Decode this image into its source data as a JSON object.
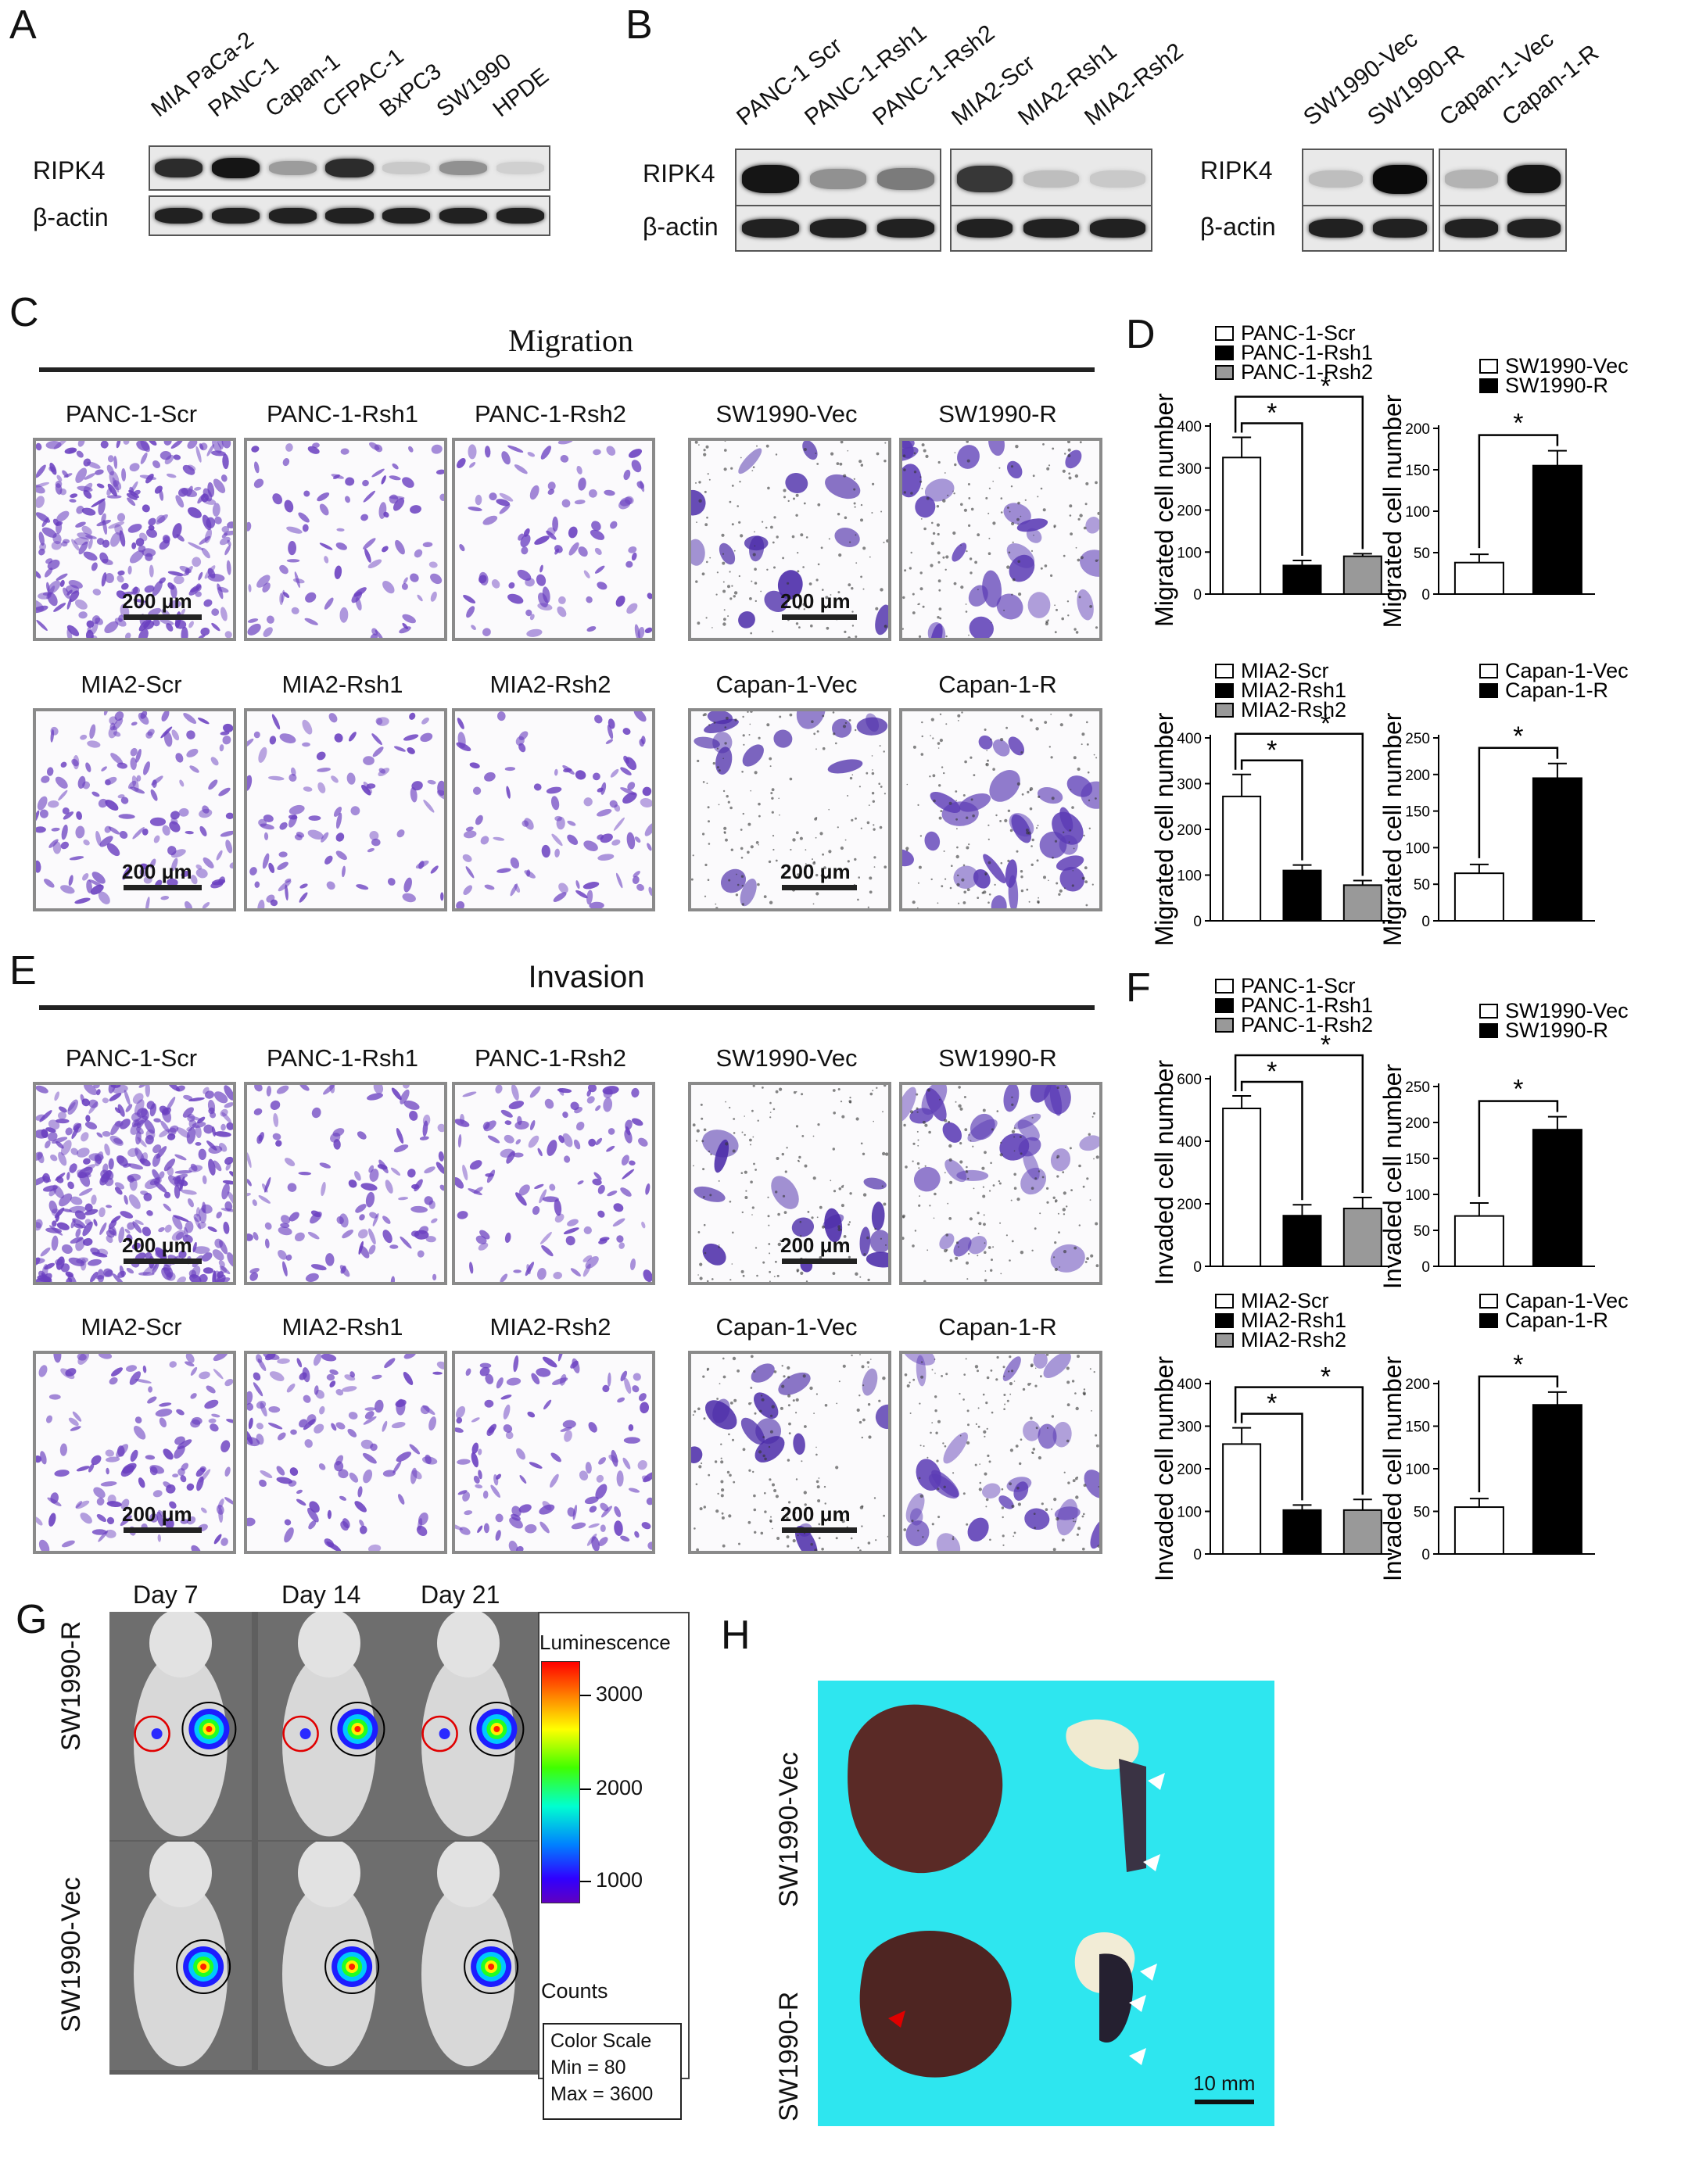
{
  "panels": {
    "A": "A",
    "B": "B",
    "C": "C",
    "D": "D",
    "E": "E",
    "F": "F",
    "G": "G",
    "H": "H"
  },
  "panelA": {
    "lanes": [
      "MIA PaCa-2",
      "PANC-1",
      "Capan-1",
      "CFPAC-1",
      "BxPC3",
      "SW1990",
      "HPDE"
    ],
    "rows": [
      "RIPK4",
      "β-actin"
    ],
    "ripk4_intensity": [
      0.85,
      0.95,
      0.35,
      0.85,
      0.15,
      0.4,
      0.12
    ]
  },
  "panelB": {
    "group1_lanes": [
      "PANC-1 Scr",
      "PANC-1-Rsh1",
      "PANC-1-Rsh2"
    ],
    "group2_lanes": [
      "MIA2-Scr",
      "MIA2-Rsh1",
      "MIA2-Rsh2"
    ],
    "group3_lanes": [
      "SW1990-Vec",
      "SW1990-R"
    ],
    "group4_lanes": [
      "Capan-1-Vec",
      "Capan-1-R"
    ],
    "rows": [
      "RIPK4",
      "β-actin"
    ],
    "ripk4_intensity_g1": [
      0.95,
      0.4,
      0.5
    ],
    "ripk4_intensity_g2": [
      0.8,
      0.2,
      0.15
    ],
    "ripk4_intensity_g3": [
      0.2,
      1.0
    ],
    "ripk4_intensity_g4": [
      0.25,
      0.95
    ]
  },
  "panelC": {
    "title": "Migration",
    "row1": [
      "PANC-1-Scr",
      "PANC-1-Rsh1",
      "PANC-1-Rsh2",
      "SW1990-Vec",
      "SW1990-R"
    ],
    "row2": [
      "MIA2-Scr",
      "MIA2-Rsh1",
      "MIA2-Rsh2",
      "Capan-1-Vec",
      "Capan-1-R"
    ],
    "scale": "200 μm"
  },
  "panelE": {
    "title": "Invasion",
    "row1": [
      "PANC-1-Scr",
      "PANC-1-Rsh1",
      "PANC-1-Rsh2",
      "SW1990-Vec",
      "SW1990-R"
    ],
    "row2": [
      "MIA2-Scr",
      "MIA2-Rsh1",
      "MIA2-Rsh2",
      "Capan-1-Vec",
      "Capan-1-R"
    ],
    "scale": "200 μm"
  },
  "chart_data": [
    {
      "id": "D1",
      "type": "bar",
      "ylabel": "Migrated cell number",
      "ylim": [
        0,
        400
      ],
      "yticks": [
        0,
        100,
        200,
        300,
        400
      ],
      "categories": [
        "PANC-1-Scr",
        "PANC-1-Rsh1",
        "PANC-1-Rsh2"
      ],
      "values": [
        325,
        68,
        90
      ],
      "errors": [
        48,
        12,
        6
      ],
      "legend": [
        "PANC-1-Scr",
        "PANC-1-Rsh1",
        "PANC-1-Rsh2"
      ],
      "fills": [
        "#ffffff",
        "#000000",
        "#999999"
      ],
      "sig": "*"
    },
    {
      "id": "D2",
      "type": "bar",
      "ylabel": "Migrated cell number",
      "ylim": [
        0,
        200
      ],
      "yticks": [
        0,
        50,
        100,
        150,
        200
      ],
      "categories": [
        "SW1990-Vec",
        "SW1990-R"
      ],
      "values": [
        38,
        155
      ],
      "errors": [
        10,
        18
      ],
      "legend": [
        "SW1990-Vec",
        "SW1990-R"
      ],
      "fills": [
        "#ffffff",
        "#000000"
      ],
      "sig": "*"
    },
    {
      "id": "D3",
      "type": "bar",
      "ylabel": "Migrated cell number",
      "ylim": [
        0,
        400
      ],
      "yticks": [
        0,
        100,
        200,
        300,
        400
      ],
      "categories": [
        "MIA2-Scr",
        "MIA2-Rsh1",
        "MIA2-Rsh2"
      ],
      "values": [
        272,
        110,
        78
      ],
      "errors": [
        48,
        12,
        10
      ],
      "legend": [
        "MIA2-Scr",
        "MIA2-Rsh1",
        "MIA2-Rsh2"
      ],
      "fills": [
        "#ffffff",
        "#000000",
        "#999999"
      ],
      "sig": "*"
    },
    {
      "id": "D4",
      "type": "bar",
      "ylabel": "Migrated cell number",
      "ylim": [
        0,
        250
      ],
      "yticks": [
        0,
        50,
        100,
        150,
        200,
        250
      ],
      "categories": [
        "Capan-1-Vec",
        "Capan-1-R"
      ],
      "values": [
        65,
        195
      ],
      "errors": [
        12,
        20
      ],
      "legend": [
        "Capan-1-Vec",
        "Capan-1-R"
      ],
      "fills": [
        "#ffffff",
        "#000000"
      ],
      "sig": "*"
    },
    {
      "id": "F1",
      "type": "bar",
      "ylabel": "Invaded cell number",
      "ylim": [
        0,
        600
      ],
      "yticks": [
        0,
        200,
        400,
        600
      ],
      "categories": [
        "PANC-1-Scr",
        "PANC-1-Rsh1",
        "PANC-1-Rsh2"
      ],
      "values": [
        505,
        162,
        185
      ],
      "errors": [
        40,
        35,
        35
      ],
      "legend": [
        "PANC-1-Scr",
        "PANC-1-Rsh1",
        "PANC-1-Rsh2"
      ],
      "fills": [
        "#ffffff",
        "#000000",
        "#999999"
      ],
      "sig": "*"
    },
    {
      "id": "F2",
      "type": "bar",
      "ylabel": "Invaded cell number",
      "ylim": [
        0,
        250
      ],
      "yticks": [
        0,
        50,
        100,
        150,
        200,
        250
      ],
      "categories": [
        "SW1990-Vec",
        "SW1990-R"
      ],
      "values": [
        70,
        190
      ],
      "errors": [
        18,
        18
      ],
      "legend": [
        "SW1990-Vec",
        "SW1990-R"
      ],
      "fills": [
        "#ffffff",
        "#000000"
      ],
      "sig": "*"
    },
    {
      "id": "F3",
      "type": "bar",
      "ylabel": "Invaded cell number",
      "ylim": [
        0,
        400
      ],
      "yticks": [
        0,
        100,
        200,
        300,
        400
      ],
      "categories": [
        "MIA2-Scr",
        "MIA2-Rsh1",
        "MIA2-Rsh2"
      ],
      "values": [
        258,
        103,
        103
      ],
      "errors": [
        38,
        12,
        25
      ],
      "legend": [
        "MIA2-Scr",
        "MIA2-Rsh1",
        "MIA2-Rsh2"
      ],
      "fills": [
        "#ffffff",
        "#000000",
        "#999999"
      ],
      "sig": "*"
    },
    {
      "id": "F4",
      "type": "bar",
      "ylabel": "Invaded cell number",
      "ylim": [
        0,
        200
      ],
      "yticks": [
        0,
        50,
        100,
        150,
        200
      ],
      "categories": [
        "Capan-1-Vec",
        "Capan-1-R"
      ],
      "values": [
        55,
        175
      ],
      "errors": [
        10,
        15
      ],
      "legend": [
        "Capan-1-Vec",
        "Capan-1-R"
      ],
      "fills": [
        "#ffffff",
        "#000000"
      ],
      "sig": "*"
    }
  ],
  "panelG": {
    "days": [
      "Day 7",
      "Day 14",
      "Day 21"
    ],
    "rows": [
      "SW1990-R",
      "SW1990-Vec"
    ],
    "luminescence_title": "Luminescence",
    "colorbar_ticks": [
      "3000",
      "2000",
      "1000"
    ],
    "counts": "Counts",
    "color_scale": "Color Scale",
    "min": "Min = 80",
    "max": "Max = 3600"
  },
  "panelH": {
    "rows": [
      "SW1990-Vec",
      "SW1990-R"
    ],
    "scale": "10 mm",
    "bg": "#2ee6ef"
  }
}
